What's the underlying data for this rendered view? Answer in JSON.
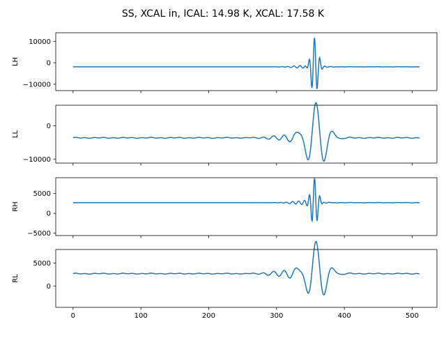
{
  "chart_data": {
    "type": "line",
    "title": "SS, XCAL in, ICAL: 14.98 K, XCAL: 17.58 K",
    "x_ticks": [
      0,
      100,
      200,
      300,
      400,
      500
    ],
    "x_ticklabels": [
      "0",
      "100",
      "200",
      "300",
      "400",
      "500"
    ],
    "xlim": [
      -25.5,
      536.5
    ],
    "line_color": "#1f77b4",
    "panels": [
      {
        "name": "LH",
        "ylabel": "LH",
        "ylim": [
          -13000,
          14000
        ],
        "yticks": [
          -10000,
          0,
          10000
        ],
        "yticklabels": [
          "−10000",
          "0",
          "10000"
        ],
        "baseline": -1900,
        "ripple_start": 300,
        "ripple_level": 50,
        "bursts": [
          {
            "center": 356,
            "amp": 14000,
            "width": 5,
            "period": 8,
            "phase": 0
          },
          {
            "center": 345,
            "amp": 700,
            "width": 18,
            "period": 9,
            "phase": 1
          }
        ]
      },
      {
        "name": "LL",
        "ylabel": "LL",
        "ylim": [
          -11200,
          6200
        ],
        "yticks": [
          -10000,
          0
        ],
        "yticklabels": [
          "−10000",
          "0"
        ],
        "baseline": -3600,
        "ripple_start": 0,
        "ripple_level": 150,
        "bursts": [
          {
            "center": 358,
            "amp": 10200,
            "width": 14,
            "period": 26,
            "phase": 0
          },
          {
            "center": 330,
            "amp": 900,
            "width": 30,
            "period": 16,
            "phase": 1
          }
        ]
      },
      {
        "name": "RH",
        "ylabel": "RH",
        "ylim": [
          -5600,
          9000
        ],
        "yticks": [
          -5000,
          0,
          5000
        ],
        "yticklabels": [
          "−5000",
          "0",
          "5000"
        ],
        "baseline": 2700,
        "ripple_start": 300,
        "ripple_level": 50,
        "bursts": [
          {
            "center": 356,
            "amp": 6500,
            "width": 5,
            "period": 8,
            "phase": 0
          },
          {
            "center": 343,
            "amp": 500,
            "width": 18,
            "period": 9,
            "phase": 1
          }
        ]
      },
      {
        "name": "RL",
        "ylabel": "RL",
        "ylim": [
          -4700,
          8000
        ],
        "yticks": [
          0,
          5000
        ],
        "yticklabels": [
          "0",
          "5000"
        ],
        "baseline": 2700,
        "ripple_start": 0,
        "ripple_level": 100,
        "bursts": [
          {
            "center": 358,
            "amp": 6700,
            "width": 14,
            "period": 26,
            "phase": 0
          },
          {
            "center": 330,
            "amp": 800,
            "width": 30,
            "period": 16,
            "phase": 1
          }
        ]
      }
    ]
  }
}
